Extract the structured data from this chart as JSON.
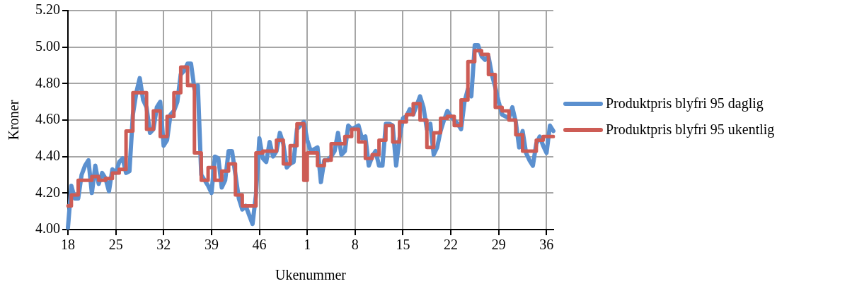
{
  "chart_data": {
    "type": "line",
    "xlabel": "Ukenummer",
    "ylabel": "Kroner",
    "categories": [
      "18",
      null,
      null,
      null,
      null,
      null,
      null,
      null,
      null,
      null,
      null,
      null,
      null,
      null,
      "25",
      null,
      null,
      null,
      null,
      null,
      null,
      null,
      null,
      null,
      null,
      null,
      null,
      null,
      "32",
      null,
      null,
      null,
      null,
      null,
      null,
      null,
      null,
      null,
      null,
      null,
      null,
      null,
      "39",
      null,
      null,
      null,
      null,
      null,
      null,
      null,
      null,
      null,
      null,
      null,
      null,
      null,
      "46",
      null,
      null,
      null,
      null,
      null,
      null,
      null,
      null,
      null,
      null,
      null,
      null,
      null,
      "1",
      null,
      null,
      null,
      null,
      null,
      null,
      null,
      null,
      null,
      null,
      null,
      null,
      null,
      "8",
      null,
      null,
      null,
      null,
      null,
      null,
      null,
      null,
      null,
      null,
      null,
      null,
      null,
      "15",
      null,
      null,
      null,
      null,
      null,
      null,
      null,
      null,
      null,
      null,
      null,
      null,
      null,
      "22",
      null,
      null,
      null,
      null,
      null,
      null,
      null,
      null,
      null,
      null,
      null,
      null,
      null,
      "29",
      null,
      null,
      null,
      null,
      null,
      null,
      null,
      null,
      null,
      null,
      null,
      null,
      null,
      "36",
      null,
      null
    ],
    "ylim": [
      4,
      5.2
    ],
    "yticks": [
      {
        "value": 4,
        "label": "4.00"
      },
      {
        "value": 4.2,
        "label": "4.20"
      },
      {
        "value": 4.4,
        "label": "4.40"
      },
      {
        "value": 4.6,
        "label": "4.60"
      },
      {
        "value": 4.8,
        "label": "4.80"
      },
      {
        "value": 5,
        "label": "5.00"
      },
      {
        "value": 5.2,
        "label": "5.20"
      }
    ],
    "grid": true,
    "legend": "right",
    "marker": "none",
    "line_style": "solid",
    "series": [
      {
        "name": "Produktpris blyfri 95 daglig",
        "color": "#5b90cf",
        "values": [
          4.01,
          4.24,
          4.17,
          4.17,
          4.3,
          4.35,
          4.38,
          4.2,
          4.35,
          4.25,
          4.31,
          4.28,
          4.21,
          4.33,
          4.31,
          4.37,
          4.39,
          4.31,
          4.32,
          4.63,
          4.75,
          4.83,
          4.71,
          4.67,
          4.53,
          4.55,
          4.67,
          4.7,
          4.46,
          4.49,
          4.63,
          4.65,
          4.7,
          4.85,
          4.87,
          4.91,
          4.91,
          4.77,
          4.79,
          4.3,
          4.27,
          4.24,
          4.2,
          4.4,
          4.39,
          4.23,
          4.27,
          4.43,
          4.43,
          4.3,
          4.17,
          4.11,
          4.13,
          4.08,
          4.03,
          4.19,
          4.5,
          4.39,
          4.37,
          4.48,
          4.4,
          4.43,
          4.53,
          4.47,
          4.34,
          4.36,
          4.37,
          4.55,
          4.57,
          4.59,
          4.49,
          4.43,
          4.44,
          4.45,
          4.26,
          4.38,
          4.38,
          4.4,
          4.43,
          4.53,
          4.41,
          4.43,
          4.57,
          4.55,
          4.56,
          4.57,
          4.5,
          4.51,
          4.35,
          4.4,
          4.43,
          4.35,
          4.35,
          4.58,
          4.58,
          4.57,
          4.35,
          4.5,
          4.61,
          4.62,
          4.66,
          4.63,
          4.68,
          4.73,
          4.67,
          4.55,
          4.58,
          4.41,
          4.45,
          4.54,
          4.6,
          4.65,
          4.62,
          4.6,
          4.58,
          4.55,
          4.7,
          4.77,
          4.73,
          5.01,
          5.01,
          4.95,
          4.93,
          4.95,
          4.85,
          4.78,
          4.7,
          4.63,
          4.62,
          4.61,
          4.67,
          4.59,
          4.45,
          4.54,
          4.42,
          4.38,
          4.35,
          4.47,
          4.51,
          4.46,
          4.42,
          4.57,
          4.54
        ]
      },
      {
        "name": "Produktpris blyfri 95 ukentlig",
        "type": "step",
        "color": "#cd5c55",
        "values": [
          4.13,
          4.13,
          4.19,
          4.19,
          4.27,
          4.27,
          4.27,
          4.27,
          4.29,
          4.29,
          4.27,
          4.27,
          4.28,
          4.28,
          4.31,
          4.31,
          4.33,
          4.33,
          4.54,
          4.54,
          4.75,
          4.75,
          4.75,
          4.75,
          4.55,
          4.55,
          4.65,
          4.65,
          4.51,
          4.51,
          4.62,
          4.62,
          4.75,
          4.75,
          4.89,
          4.89,
          4.79,
          4.79,
          4.42,
          4.42,
          4.27,
          4.27,
          4.34,
          4.34,
          4.27,
          4.27,
          4.32,
          4.32,
          4.36,
          4.36,
          4.19,
          4.19,
          4.13,
          4.13,
          4.13,
          4.13,
          4.42,
          4.42,
          4.43,
          4.43,
          4.43,
          4.43,
          4.49,
          4.49,
          4.36,
          4.36,
          4.46,
          4.46,
          4.58,
          4.58,
          4.27,
          4.42,
          4.42,
          4.42,
          4.35,
          4.35,
          4.38,
          4.38,
          4.47,
          4.47,
          4.47,
          4.47,
          4.51,
          4.51,
          4.55,
          4.55,
          4.48,
          4.48,
          4.39,
          4.39,
          4.41,
          4.41,
          4.49,
          4.49,
          4.57,
          4.57,
          4.48,
          4.48,
          4.59,
          4.59,
          4.63,
          4.63,
          4.69,
          4.69,
          4.6,
          4.6,
          4.45,
          4.45,
          4.53,
          4.53,
          4.61,
          4.61,
          4.62,
          4.62,
          4.57,
          4.57,
          4.71,
          4.71,
          4.92,
          4.92,
          4.98,
          4.98,
          4.96,
          4.96,
          4.85,
          4.85,
          4.67,
          4.67,
          4.65,
          4.65,
          4.6,
          4.6,
          4.52,
          4.52,
          4.43,
          4.43,
          4.43,
          4.43,
          4.49,
          4.49,
          4.51,
          4.51,
          4.51
        ]
      }
    ]
  }
}
